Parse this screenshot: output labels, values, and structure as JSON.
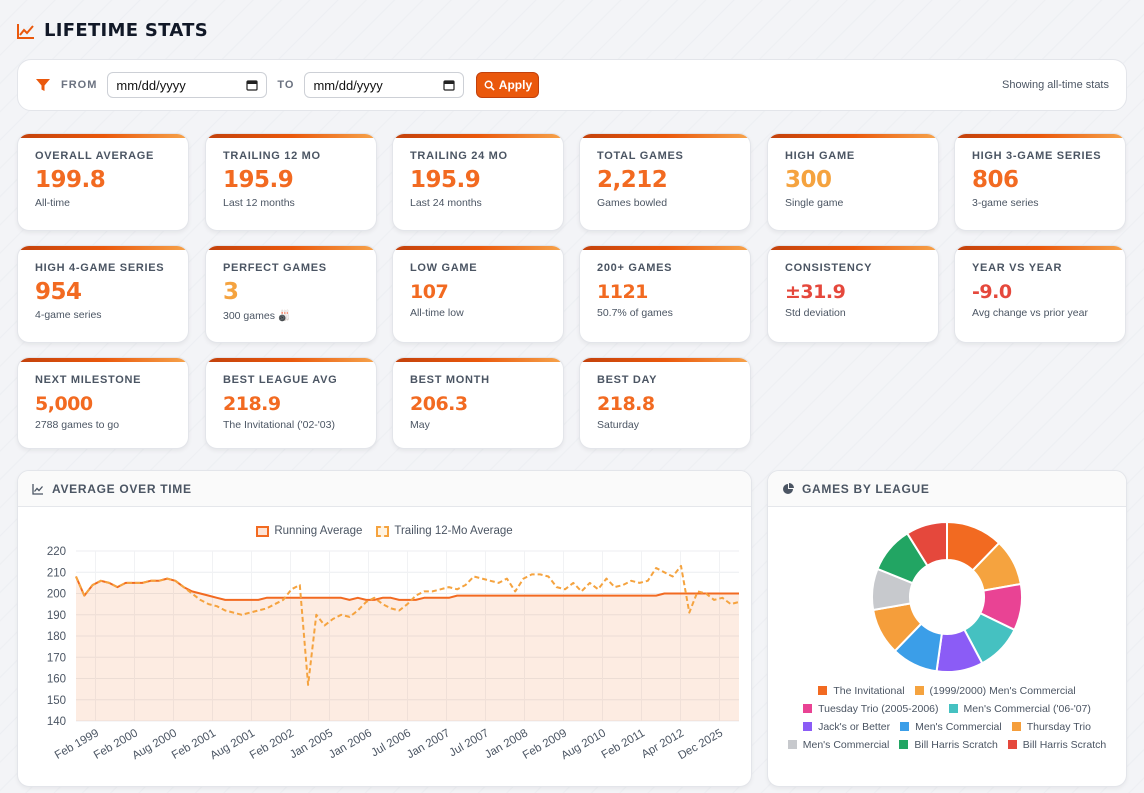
{
  "page": {
    "title": "LIFETIME STATS"
  },
  "filter": {
    "from_label": "FROM",
    "to_label": "TO",
    "from_placeholder": "mm/dd/yyyy",
    "to_placeholder": "mm/dd/yyyy",
    "apply_label": "Apply",
    "status": "Showing all-time stats"
  },
  "cards": [
    {
      "label": "OVERALL AVERAGE",
      "value": "199.8",
      "sub": "All-time"
    },
    {
      "label": "TRAILING 12 MO",
      "value": "195.9",
      "sub": "Last 12 months"
    },
    {
      "label": "TRAILING 24 MO",
      "value": "195.9",
      "sub": "Last 24 months"
    },
    {
      "label": "TOTAL GAMES",
      "value": "2,212",
      "sub": "Games bowled"
    },
    {
      "label": "HIGH GAME",
      "value": "300",
      "sub": "Single game"
    },
    {
      "label": "HIGH 3-GAME SERIES",
      "value": "806",
      "sub": "3-game series"
    },
    {
      "label": "HIGH 4-GAME SERIES",
      "value": "954",
      "sub": "4-game series"
    },
    {
      "label": "PERFECT GAMES",
      "value": "3",
      "sub": "300 games 🎳"
    },
    {
      "label": "LOW GAME",
      "value": "107",
      "sub": "All-time low"
    },
    {
      "label": "200+ GAMES",
      "value": "1121",
      "sub": "50.7% of games"
    },
    {
      "label": "CONSISTENCY",
      "value": "±31.9",
      "sub": "Std deviation"
    },
    {
      "label": "YEAR VS YEAR",
      "value": "-9.0",
      "sub": "Avg change vs prior year"
    },
    {
      "label": "NEXT MILESTONE",
      "value": "5,000",
      "sub": "2788 games to go"
    },
    {
      "label": "BEST LEAGUE AVG",
      "value": "218.9",
      "sub": "The Invitational ('02-'03)"
    },
    {
      "label": "BEST MONTH",
      "value": "206.3",
      "sub": "May"
    },
    {
      "label": "BEST DAY",
      "value": "218.8",
      "sub": "Saturday"
    }
  ],
  "colors": {
    "accent": "#f26a21",
    "gold": "#f5a33f",
    "red": "#e5483c"
  },
  "avg_panel": {
    "title": "AVERAGE OVER TIME"
  },
  "league_panel": {
    "title": "GAMES BY LEAGUE"
  },
  "chart_data": [
    {
      "type": "line",
      "title": "",
      "ylim": [
        140,
        220
      ],
      "yticks": [
        140,
        150,
        160,
        170,
        180,
        190,
        200,
        210,
        220
      ],
      "grid": true,
      "legend_position": "top",
      "x_tick_labels": [
        "Feb 1999",
        "Feb 2000",
        "Aug 2000",
        "Feb 2001",
        "Aug 2001",
        "Feb 2002",
        "Jan 2005",
        "Jan 2006",
        "Jul 2006",
        "Jan 2007",
        "Jul 2007",
        "Jan 2008",
        "Feb 2009",
        "Aug 2010",
        "Feb 2011",
        "Apr 2012",
        "Dec 2025"
      ],
      "series": [
        {
          "name": "Running Average",
          "color": "#f26a21",
          "fill": true,
          "values": [
            208,
            199,
            204,
            206,
            205,
            203,
            205,
            205,
            205,
            206,
            206,
            207,
            206,
            203,
            201,
            200,
            199,
            198,
            197,
            197,
            197,
            197,
            197,
            198,
            198,
            198,
            198,
            198,
            198,
            198,
            198,
            198,
            198,
            197,
            198,
            197,
            197,
            198,
            198,
            197,
            197,
            197,
            198,
            198,
            198,
            198,
            199,
            199,
            199,
            199,
            199,
            199,
            199,
            199,
            199,
            199,
            199,
            199,
            199,
            199,
            199,
            199,
            199,
            199,
            199,
            199,
            199,
            199,
            199,
            199,
            199,
            200,
            200,
            200,
            200,
            200,
            200,
            200,
            200,
            200,
            200
          ]
        },
        {
          "name": "Trailing 12-Mo Average",
          "color": "#f5a33f",
          "dashed": true,
          "values": [
            208,
            199,
            204,
            206,
            205,
            203,
            205,
            205,
            205,
            206,
            206,
            207,
            206,
            203,
            200,
            197,
            195,
            194,
            192,
            191,
            190,
            191,
            192,
            193,
            195,
            197,
            202,
            204,
            157,
            190,
            185,
            188,
            190,
            189,
            192,
            196,
            198,
            195,
            193,
            192,
            195,
            199,
            201,
            201,
            202,
            203,
            202,
            204,
            208,
            207,
            206,
            205,
            207,
            201,
            207,
            209,
            209,
            208,
            203,
            202,
            205,
            201,
            205,
            202,
            207,
            203,
            204,
            206,
            205,
            206,
            212,
            210,
            208,
            213,
            191,
            201,
            200,
            197,
            198,
            195,
            196
          ]
        }
      ]
    },
    {
      "type": "pie",
      "donut": true,
      "legend_position": "bottom",
      "slices": [
        {
          "label": "The Invitational",
          "value": 11,
          "color": "#f26a21"
        },
        {
          "label": "(1999/2000) Men's Commercial",
          "value": 9,
          "color": "#f5a33f"
        },
        {
          "label": "Tuesday Trio (2005-2006)",
          "value": 9,
          "color": "#e94394"
        },
        {
          "label": "Men's Commercial ('06-'07)",
          "value": 9,
          "color": "#45c1c1"
        },
        {
          "label": "Jack's or Better",
          "value": 9,
          "color": "#8b5cf6"
        },
        {
          "label": "Men's Commercial",
          "value": 9,
          "color": "#3b9ee8"
        },
        {
          "label": "Thursday Trio",
          "value": 9,
          "color": "#f59e3b"
        },
        {
          "label": "Men's Commercial",
          "value": 8,
          "color": "#c7c9cd"
        },
        {
          "label": "Bill Harris Scratch",
          "value": 9,
          "color": "#22a563"
        },
        {
          "label": "Bill Harris Scratch",
          "value": 8,
          "color": "#e5483c"
        }
      ]
    }
  ]
}
